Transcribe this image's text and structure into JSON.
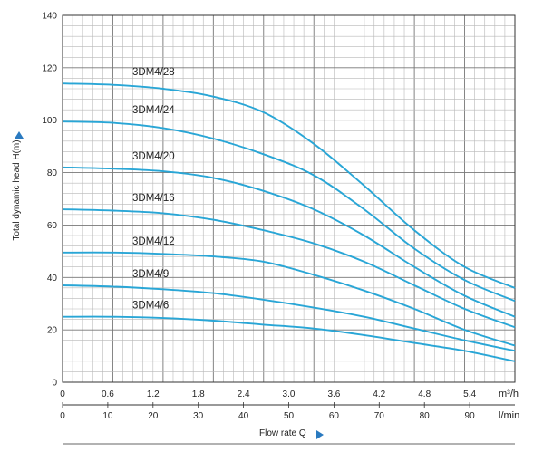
{
  "chart_data": {
    "type": "line",
    "ylabel": "Total dynamic head H(m)",
    "xlabel": "Flow rate Q",
    "y_ticks": [
      "0",
      "20",
      "40",
      "60",
      "80",
      "100",
      "120",
      "140"
    ],
    "ylim": [
      0,
      140
    ],
    "x_axis_m3h": {
      "unit": "m³/h",
      "ticks": [
        "0",
        "0.6",
        "1.2",
        "1.8",
        "2.4",
        "3.0",
        "3.6",
        "4.2",
        "4.8",
        "5.4"
      ],
      "range": [
        0,
        5.4
      ]
    },
    "x_axis_lmin": {
      "unit": "l/min",
      "ticks": [
        "0",
        "10",
        "20",
        "30",
        "40",
        "50",
        "60",
        "70",
        "80",
        "90"
      ],
      "range": [
        0,
        90
      ]
    },
    "grid": true,
    "series": [
      {
        "name": "3DM4/28",
        "x": [
          0,
          0.6,
          1.2,
          1.8,
          2.4,
          3.0,
          3.6,
          4.2,
          4.8,
          5.4
        ],
        "y": [
          114,
          113.5,
          112,
          109,
          103,
          91,
          75,
          58,
          44,
          36
        ]
      },
      {
        "name": "3DM4/24",
        "x": [
          0,
          0.6,
          1.2,
          1.8,
          2.4,
          3.0,
          3.6,
          4.2,
          4.8,
          5.4
        ],
        "y": [
          99.5,
          99,
          97,
          93,
          87,
          79,
          66,
          51,
          39,
          31
        ]
      },
      {
        "name": "3DM4/20",
        "x": [
          0,
          0.6,
          1.2,
          1.8,
          2.4,
          3.0,
          3.6,
          4.2,
          4.8,
          5.4
        ],
        "y": [
          82,
          81.5,
          80.5,
          78,
          73,
          66,
          56,
          44,
          33,
          25
        ]
      },
      {
        "name": "3DM4/16",
        "x": [
          0,
          0.6,
          1.2,
          1.8,
          2.4,
          3.0,
          3.6,
          4.2,
          4.8,
          5.4
        ],
        "y": [
          66,
          65.5,
          64.5,
          62,
          58,
          53,
          46,
          37,
          28,
          21
        ]
      },
      {
        "name": "3DM4/12",
        "x": [
          0,
          0.6,
          1.2,
          1.8,
          2.4,
          3.0,
          3.6,
          4.2,
          4.8,
          5.4
        ],
        "y": [
          49.5,
          49.5,
          49,
          48,
          46,
          41,
          35,
          28,
          20,
          14
        ]
      },
      {
        "name": "3DM4/9",
        "x": [
          0,
          0.6,
          1.2,
          1.8,
          2.4,
          3.0,
          3.6,
          4.2,
          4.8,
          5.4
        ],
        "y": [
          37,
          36.5,
          35.5,
          34,
          31.5,
          28.5,
          25,
          20.5,
          16,
          12
        ]
      },
      {
        "name": "3DM4/6",
        "x": [
          0,
          0.6,
          1.2,
          1.8,
          2.4,
          3.0,
          3.6,
          4.2,
          4.8,
          5.4
        ],
        "y": [
          25,
          25,
          24.5,
          23.5,
          22,
          20.5,
          18,
          15,
          12,
          8
        ]
      }
    ],
    "line_color": "#29a6d6"
  }
}
